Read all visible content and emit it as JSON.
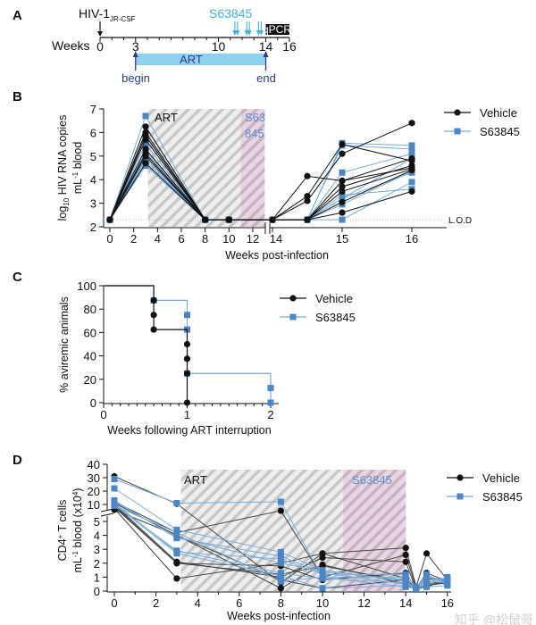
{
  "colors": {
    "vehicle": "#111111",
    "s63845_marker": "#4a86c5",
    "s63845_line": "#79acd9",
    "art_bar": "#8fd0ee",
    "art_text": "#2b3a8a",
    "s63845_text": "#3fb0e0",
    "hatch_region": "#c9c9c9",
    "s63845_region": "#d8c3d3"
  },
  "panel_a": {
    "label": "A",
    "virus": "HIV-1",
    "virus_subscript": "JR-CSF",
    "drug": "S63845",
    "drug_doses_weeks": [
      11.5,
      12.5,
      13.5
    ],
    "qpcr_label": "qPCR",
    "qpcr_weeks": [
      14,
      16
    ],
    "axis_label": "Weeks",
    "ticks": [
      "0",
      "3",
      "10",
      "14",
      "16"
    ],
    "art_label": "ART",
    "art_weeks": [
      3,
      14
    ],
    "begin_label": "begin",
    "end_label": "end"
  },
  "chart_data": [
    {
      "panel": "B",
      "type": "line",
      "ylabel": "log10 HIV RNA copies mL-1 blood",
      "ylabel_parts": [
        "log",
        "10",
        " HIV RNA copies",
        "mL",
        "-1",
        " blood"
      ],
      "xlabel": "Weeks post-infection",
      "ylim": [
        2,
        7
      ],
      "yticks": [
        "2",
        "3",
        "4",
        "5",
        "6",
        "7"
      ],
      "xticks": [
        "0",
        "2",
        "4",
        "6",
        "8",
        "10",
        "12",
        "14",
        "15",
        "16"
      ],
      "xtick_values": [
        0,
        2,
        4,
        6,
        8,
        10,
        12,
        14,
        15,
        16
      ],
      "x_axis_break": [
        13,
        14
      ],
      "lod": 2.3,
      "lod_label": "L.O.D",
      "art_label": "ART",
      "art_weeks": [
        3.2,
        13
      ],
      "drug_region_label": [
        "S63",
        "845"
      ],
      "drug_weeks": [
        11,
        13
      ],
      "legend": [
        "Vehicle",
        "S63845"
      ],
      "legend_position": "top-right",
      "x": [
        0,
        3,
        8,
        10,
        14,
        14.5,
        15,
        16
      ],
      "series": [
        {
          "name": "Vehicle",
          "animals": [
            [
              2.3,
              6.25,
              2.3,
              2.3,
              2.3,
              4.15,
              3.95,
              4.5
            ],
            [
              2.3,
              6.0,
              2.3,
              2.3,
              2.3,
              3.3,
              5.5,
              4.8
            ],
            [
              2.3,
              5.85,
              2.3,
              2.3,
              2.3,
              3.1,
              5.1,
              6.4
            ],
            [
              2.3,
              5.7,
              2.3,
              2.3,
              2.3,
              2.3,
              3.7,
              4.6
            ],
            [
              2.3,
              5.3,
              2.3,
              2.3,
              2.3,
              2.3,
              3.5,
              4.45
            ],
            [
              2.3,
              5.1,
              2.3,
              2.3,
              2.3,
              2.3,
              3.05,
              4.4
            ],
            [
              2.3,
              5.0,
              2.3,
              2.3,
              2.3,
              2.3,
              3.95,
              4.9
            ],
            [
              2.3,
              4.7,
              2.3,
              2.3,
              2.3,
              2.3,
              2.6,
              3.5
            ]
          ]
        },
        {
          "name": "S63845",
          "animals": [
            [
              2.3,
              6.7,
              2.3,
              2.3,
              2.3,
              2.3,
              5.55,
              5.45
            ],
            [
              2.3,
              5.9,
              2.3,
              2.3,
              2.3,
              2.3,
              5.45,
              5.3
            ],
            [
              2.3,
              5.5,
              2.3,
              2.3,
              2.3,
              2.3,
              4.3,
              5.1
            ],
            [
              2.3,
              5.2,
              2.3,
              2.3,
              2.3,
              2.3,
              3.2,
              4.9
            ],
            [
              2.3,
              4.9,
              2.3,
              2.3,
              2.3,
              2.3,
              3.2,
              4.3
            ],
            [
              2.3,
              4.8,
              2.3,
              2.3,
              2.3,
              2.3,
              2.3,
              3.9
            ],
            [
              2.3,
              4.6,
              2.3,
              2.3,
              2.3,
              2.3,
              3.35,
              3.6
            ],
            [
              2.3,
              4.6,
              2.3,
              2.3,
              2.3,
              2.3,
              2.95,
              4.35
            ]
          ]
        }
      ]
    },
    {
      "panel": "C",
      "type": "line",
      "subtype": "survival-step",
      "ylabel": "% aviremic animals",
      "xlabel": "Weeks following ART interruption",
      "ylim": [
        0,
        100
      ],
      "xlim": [
        0,
        2
      ],
      "yticks": [
        "0",
        "20",
        "40",
        "60",
        "80",
        "100"
      ],
      "xticks": [
        "0",
        "1",
        "2"
      ],
      "legend": [
        "Vehicle",
        "S63845"
      ],
      "legend_position": "right",
      "series": [
        {
          "name": "Vehicle",
          "step": [
            [
              0,
              100
            ],
            [
              0.6,
              100
            ],
            [
              0.6,
              62.5
            ],
            [
              1,
              62.5
            ],
            [
              1,
              0
            ]
          ],
          "points": [
            [
              0.6,
              87.5
            ],
            [
              0.6,
              75
            ],
            [
              0.6,
              62.5
            ],
            [
              1,
              50
            ],
            [
              1,
              37.5
            ],
            [
              1,
              25
            ],
            [
              1,
              0
            ]
          ]
        },
        {
          "name": "S63845",
          "step": [
            [
              0,
              100
            ],
            [
              0.6,
              100
            ],
            [
              0.6,
              87.5
            ],
            [
              1,
              87.5
            ],
            [
              1,
              25
            ],
            [
              2,
              25
            ],
            [
              2,
              0
            ]
          ],
          "points": [
            [
              0.6,
              87.5
            ],
            [
              1,
              75
            ],
            [
              1,
              62.5
            ],
            [
              1,
              25
            ],
            [
              2,
              12.5
            ],
            [
              2,
              0
            ]
          ]
        }
      ]
    },
    {
      "panel": "D",
      "type": "line",
      "ylabel": "CD4+ T cells mL-1 blood (x10^4)",
      "ylabel_parts": [
        "CD4",
        "+",
        " T cells",
        "mL",
        "-1",
        " blood (x10",
        "4",
        ")"
      ],
      "xlabel": "Weeks post-infection",
      "y_axis_break": [
        5,
        5
      ],
      "yticks": [
        "0",
        "1",
        "2",
        "3",
        "4",
        "5",
        "10",
        "20",
        "30",
        "40"
      ],
      "ytick_values": [
        0,
        1,
        2,
        3,
        4,
        5,
        10,
        20,
        30,
        40
      ],
      "xticks": [
        "0",
        "2",
        "4",
        "6",
        "8",
        "10",
        "12",
        "14",
        "16"
      ],
      "art_label": "ART",
      "art_weeks": [
        3.2,
        14
      ],
      "drug_region_label": "S63845",
      "drug_weeks": [
        11,
        14
      ],
      "legend": [
        "Vehicle",
        "S63845"
      ],
      "legend_position": "top-right",
      "x": [
        0,
        3,
        8,
        10,
        14,
        14.5,
        15,
        16
      ],
      "series": [
        {
          "name": "Vehicle",
          "animals": [
            [
              31,
              10.5,
              0.6,
              2.7,
              3.1,
              0.3,
              2.7,
              0.8
            ],
            [
              12,
              4.2,
              5.3,
              1.0,
              2.6,
              0.2,
              1.0,
              0.7
            ],
            [
              10,
              2.1,
              1.0,
              2.4,
              2.1,
              0.1,
              0.5,
              0.6
            ],
            [
              8,
              2.0,
              1.8,
              0.8,
              1.3,
              0.2,
              0.3,
              0.8
            ],
            [
              7,
              0.9,
              2.0,
              2.7,
              0.9,
              0.2,
              1.3,
              0.7
            ],
            [
              6,
              4.0,
              0.2,
              1.9,
              0.5,
              0.1,
              0.7,
              0.5
            ],
            [
              9,
              2.0,
              1.2,
              1.8,
              0.7,
              0.3,
              0.9,
              0.9
            ],
            [
              11,
              4.0,
              0.8,
              0.2,
              0.8,
              0.1,
              0.4,
              0.6
            ]
          ]
        },
        {
          "name": "S63845",
          "animals": [
            [
              29,
              11,
              12,
              1.0,
              1.0,
              0.2,
              1.0,
              0.8
            ],
            [
              22,
              4.4,
              2.8,
              1.5,
              0.7,
              0.1,
              0.9,
              0.6
            ],
            [
              13,
              3.8,
              2.5,
              1.3,
              0.5,
              0.2,
              0.6,
              0.9
            ],
            [
              11,
              2.8,
              2.3,
              1.2,
              1.2,
              0.3,
              0.8,
              0.7
            ],
            [
              10,
              2.7,
              1.1,
              0.2,
              0.4,
              0.1,
              0.5,
              1.0
            ],
            [
              9,
              4.2,
              0.7,
              1.0,
              0.3,
              0.2,
              1.2,
              0.5
            ],
            [
              12,
              3.9,
              2.0,
              1.4,
              0.8,
              0.1,
              0.3,
              0.4
            ],
            [
              10,
              2.9,
              1.3,
              0.9,
              0.6,
              0.2,
              0.7,
              0.6
            ]
          ]
        }
      ]
    }
  ],
  "watermark": "知乎 @松鼠哥"
}
